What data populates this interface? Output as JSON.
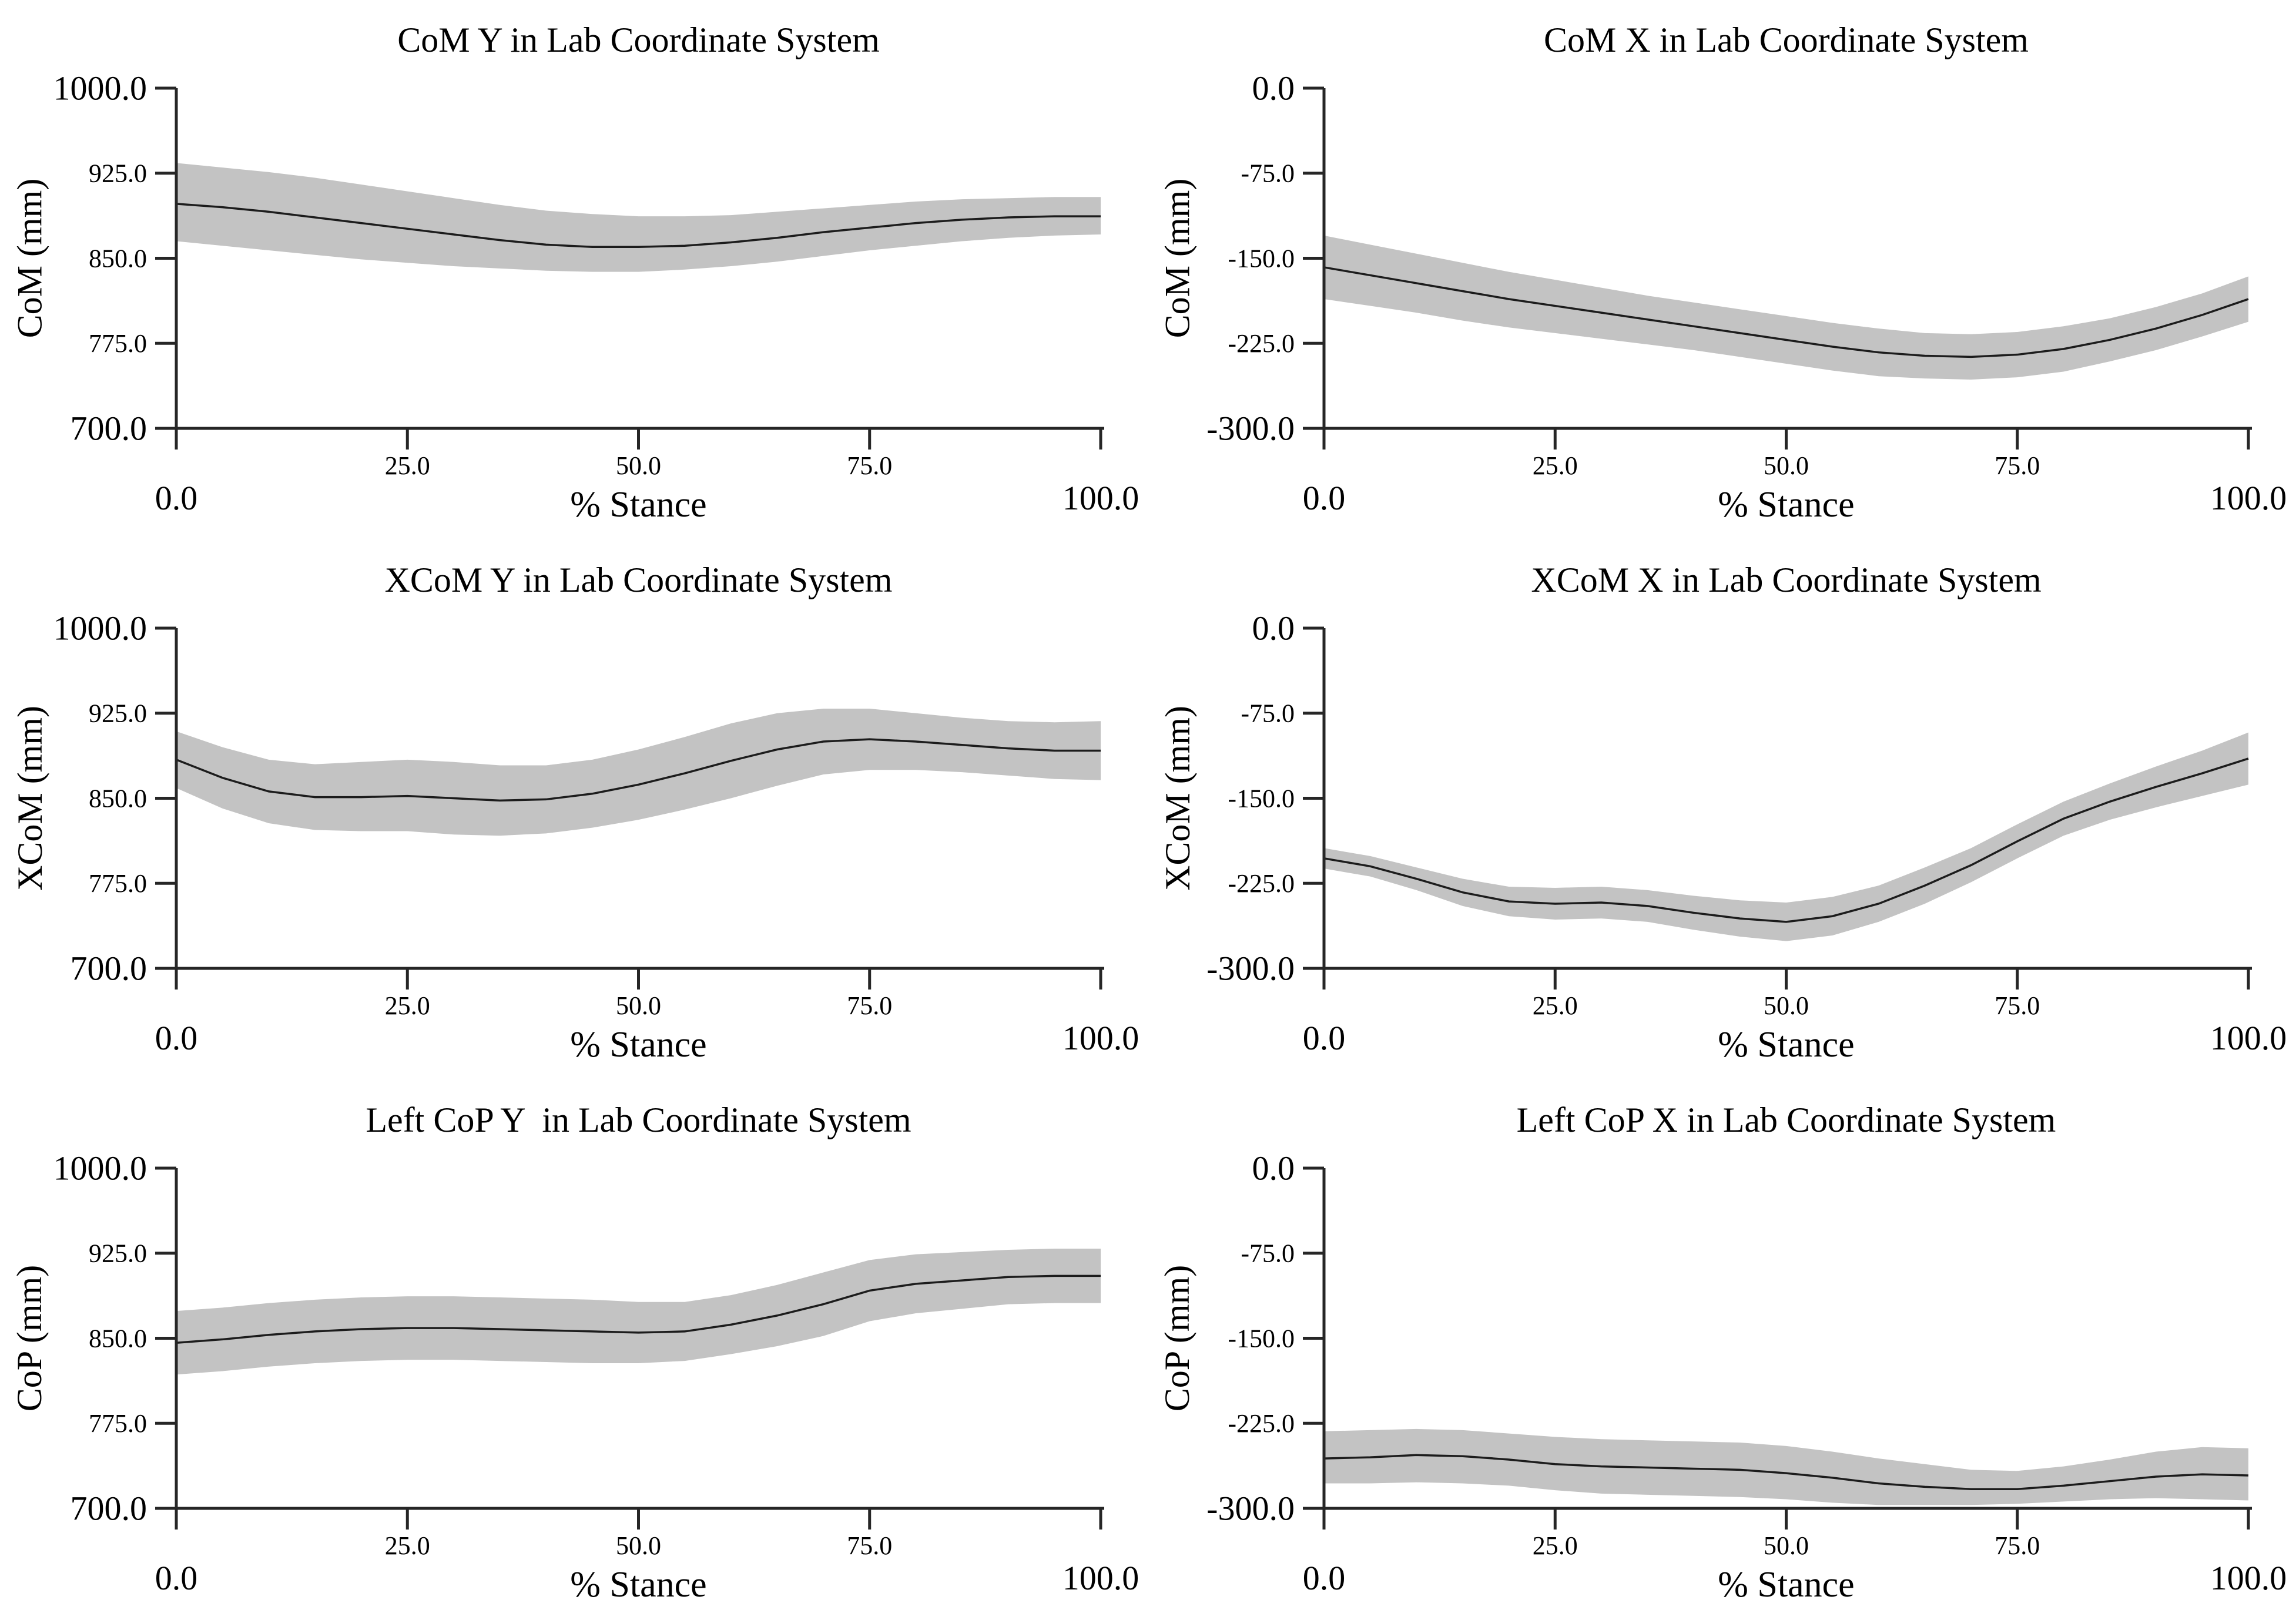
{
  "page": {
    "background": "#ffffff",
    "text_color": "#000000"
  },
  "style": {
    "band_color": "#c3c3c3",
    "line_color": "#1c1c1c",
    "axis_color": "#262626",
    "tick_len": 36,
    "axis_width": 5,
    "line_width": 3.5
  },
  "chart_data": [
    {
      "type": "line",
      "title": "CoM Y in Lab Coordinate System",
      "xlabel": "% Stance",
      "ylabel": "CoM (mm)",
      "xlim": [
        0,
        100
      ],
      "ylim": [
        700,
        1000
      ],
      "xticks": [
        0,
        25,
        50,
        75,
        100
      ],
      "yticks": [
        700,
        775,
        850,
        925,
        1000
      ],
      "grid": false,
      "legend": "none",
      "x": [
        0,
        5,
        10,
        15,
        20,
        25,
        30,
        35,
        40,
        45,
        50,
        55,
        60,
        65,
        70,
        75,
        80,
        85,
        90,
        95,
        100
      ],
      "series": [
        {
          "name": "mean",
          "values": [
            898,
            895,
            891,
            886,
            881,
            876,
            871,
            866,
            862,
            860,
            860,
            861,
            864,
            868,
            873,
            877,
            881,
            884,
            886,
            887,
            887
          ]
        },
        {
          "name": "upper",
          "values": [
            934,
            930,
            926,
            921,
            915,
            909,
            903,
            897,
            892,
            889,
            887,
            887,
            888,
            891,
            894,
            897,
            900,
            902,
            903,
            904,
            904
          ]
        },
        {
          "name": "lower",
          "values": [
            865,
            861,
            857,
            853,
            849,
            846,
            843,
            841,
            839,
            838,
            838,
            840,
            843,
            847,
            852,
            857,
            861,
            865,
            868,
            870,
            871
          ]
        }
      ]
    },
    {
      "type": "line",
      "title": "CoM X in Lab Coordinate System",
      "xlabel": "% Stance",
      "ylabel": "CoM (mm)",
      "xlim": [
        0,
        100
      ],
      "ylim": [
        -300,
        0
      ],
      "xticks": [
        0,
        25,
        50,
        75,
        100
      ],
      "yticks": [
        -300,
        -225,
        -150,
        -75,
        0
      ],
      "grid": false,
      "legend": "none",
      "x": [
        0,
        5,
        10,
        15,
        20,
        25,
        30,
        35,
        40,
        45,
        50,
        55,
        60,
        65,
        70,
        75,
        80,
        85,
        90,
        95,
        100
      ],
      "series": [
        {
          "name": "mean",
          "values": [
            -158,
            -165,
            -172,
            -179,
            -186,
            -192,
            -198,
            -204,
            -210,
            -216,
            -222,
            -228,
            -233,
            -236,
            -237,
            -235,
            -230,
            -222,
            -212,
            -200,
            -186
          ]
        },
        {
          "name": "upper",
          "values": [
            -130,
            -138,
            -146,
            -154,
            -162,
            -169,
            -176,
            -183,
            -189,
            -195,
            -201,
            -207,
            -212,
            -216,
            -217,
            -215,
            -210,
            -203,
            -193,
            -181,
            -166
          ]
        },
        {
          "name": "lower",
          "values": [
            -186,
            -192,
            -198,
            -205,
            -211,
            -216,
            -221,
            -226,
            -231,
            -237,
            -243,
            -249,
            -254,
            -256,
            -257,
            -255,
            -250,
            -241,
            -231,
            -219,
            -206
          ]
        }
      ]
    },
    {
      "type": "line",
      "title": "XCoM Y in Lab Coordinate System",
      "xlabel": "% Stance",
      "ylabel": "XCoM (mm)",
      "xlim": [
        0,
        100
      ],
      "ylim": [
        700,
        1000
      ],
      "xticks": [
        0,
        25,
        50,
        75,
        100
      ],
      "yticks": [
        700,
        775,
        850,
        925,
        1000
      ],
      "grid": false,
      "legend": "none",
      "x": [
        0,
        5,
        10,
        15,
        20,
        25,
        30,
        35,
        40,
        45,
        50,
        55,
        60,
        65,
        70,
        75,
        80,
        85,
        90,
        95,
        100
      ],
      "series": [
        {
          "name": "mean",
          "values": [
            884,
            868,
            856,
            851,
            851,
            852,
            850,
            848,
            849,
            854,
            862,
            872,
            883,
            893,
            900,
            902,
            900,
            897,
            894,
            892,
            892
          ]
        },
        {
          "name": "upper",
          "values": [
            909,
            895,
            884,
            880,
            882,
            884,
            882,
            879,
            879,
            884,
            893,
            904,
            916,
            925,
            929,
            929,
            925,
            921,
            918,
            917,
            918
          ]
        },
        {
          "name": "lower",
          "values": [
            859,
            841,
            828,
            822,
            821,
            821,
            818,
            817,
            819,
            824,
            831,
            840,
            850,
            861,
            871,
            875,
            875,
            873,
            870,
            867,
            866
          ]
        }
      ]
    },
    {
      "type": "line",
      "title": "XCoM X in Lab Coordinate System",
      "xlabel": "% Stance",
      "ylabel": "XCoM (mm)",
      "xlim": [
        0,
        100
      ],
      "ylim": [
        -300,
        0
      ],
      "xticks": [
        0,
        25,
        50,
        75,
        100
      ],
      "yticks": [
        -300,
        -225,
        -150,
        -75,
        0
      ],
      "grid": false,
      "legend": "none",
      "x": [
        0,
        5,
        10,
        15,
        20,
        25,
        30,
        35,
        40,
        45,
        50,
        55,
        60,
        65,
        70,
        75,
        80,
        85,
        90,
        95,
        100
      ],
      "series": [
        {
          "name": "mean",
          "values": [
            -203,
            -210,
            -221,
            -233,
            -241,
            -243,
            -242,
            -245,
            -251,
            -256,
            -259,
            -254,
            -243,
            -227,
            -209,
            -188,
            -168,
            -153,
            -140,
            -128,
            -115
          ]
        },
        {
          "name": "upper",
          "values": [
            -194,
            -201,
            -211,
            -221,
            -228,
            -229,
            -228,
            -231,
            -236,
            -240,
            -242,
            -237,
            -227,
            -211,
            -194,
            -173,
            -153,
            -137,
            -122,
            -108,
            -92
          ]
        },
        {
          "name": "lower",
          "values": [
            -212,
            -219,
            -231,
            -245,
            -254,
            -257,
            -256,
            -259,
            -266,
            -272,
            -276,
            -271,
            -259,
            -243,
            -224,
            -203,
            -183,
            -169,
            -158,
            -148,
            -138
          ]
        }
      ]
    },
    {
      "type": "line",
      "title": "Left CoP Y  in Lab Coordinate System",
      "xlabel": "% Stance",
      "ylabel": "CoP (mm)",
      "xlim": [
        0,
        100
      ],
      "ylim": [
        700,
        1000
      ],
      "xticks": [
        0,
        25,
        50,
        75,
        100
      ],
      "yticks": [
        700,
        775,
        850,
        925,
        1000
      ],
      "grid": false,
      "legend": "none",
      "x": [
        0,
        5,
        10,
        15,
        20,
        25,
        30,
        35,
        40,
        45,
        50,
        55,
        60,
        65,
        70,
        75,
        80,
        85,
        90,
        95,
        100
      ],
      "series": [
        {
          "name": "mean",
          "values": [
            846,
            849,
            853,
            856,
            858,
            859,
            859,
            858,
            857,
            856,
            855,
            856,
            862,
            870,
            880,
            892,
            898,
            901,
            904,
            905,
            905
          ]
        },
        {
          "name": "upper",
          "values": [
            874,
            877,
            881,
            884,
            886,
            887,
            887,
            886,
            885,
            884,
            882,
            882,
            888,
            897,
            908,
            919,
            924,
            926,
            928,
            929,
            929
          ]
        },
        {
          "name": "lower",
          "values": [
            818,
            821,
            825,
            828,
            830,
            831,
            831,
            830,
            829,
            828,
            828,
            830,
            836,
            843,
            852,
            865,
            872,
            876,
            880,
            881,
            881
          ]
        }
      ]
    },
    {
      "type": "line",
      "title": "Left CoP X in Lab Coordinate System",
      "xlabel": "% Stance",
      "ylabel": "CoP (mm)",
      "xlim": [
        0,
        100
      ],
      "ylim": [
        -300,
        0
      ],
      "xticks": [
        0,
        25,
        50,
        75,
        100
      ],
      "yticks": [
        -300,
        -225,
        -150,
        -75,
        0
      ],
      "grid": false,
      "legend": "none",
      "x": [
        0,
        5,
        10,
        15,
        20,
        25,
        30,
        35,
        40,
        45,
        50,
        55,
        60,
        65,
        70,
        75,
        80,
        85,
        90,
        95,
        100
      ],
      "series": [
        {
          "name": "mean",
          "values": [
            -256,
            -255,
            -253,
            -254,
            -257,
            -261,
            -263,
            -264,
            -265,
            -266,
            -269,
            -273,
            -278,
            -281,
            -283,
            -283,
            -280,
            -276,
            -272,
            -270,
            -271
          ]
        },
        {
          "name": "upper",
          "values": [
            -232,
            -231,
            -230,
            -231,
            -234,
            -237,
            -239,
            -240,
            -241,
            -242,
            -245,
            -250,
            -256,
            -261,
            -266,
            -267,
            -263,
            -257,
            -250,
            -246,
            -247
          ]
        },
        {
          "name": "lower",
          "values": [
            -278,
            -278,
            -277,
            -278,
            -280,
            -284,
            -287,
            -288,
            -289,
            -290,
            -292,
            -295,
            -297,
            -297,
            -297,
            -296,
            -294,
            -292,
            -291,
            -292,
            -293
          ]
        }
      ]
    }
  ]
}
